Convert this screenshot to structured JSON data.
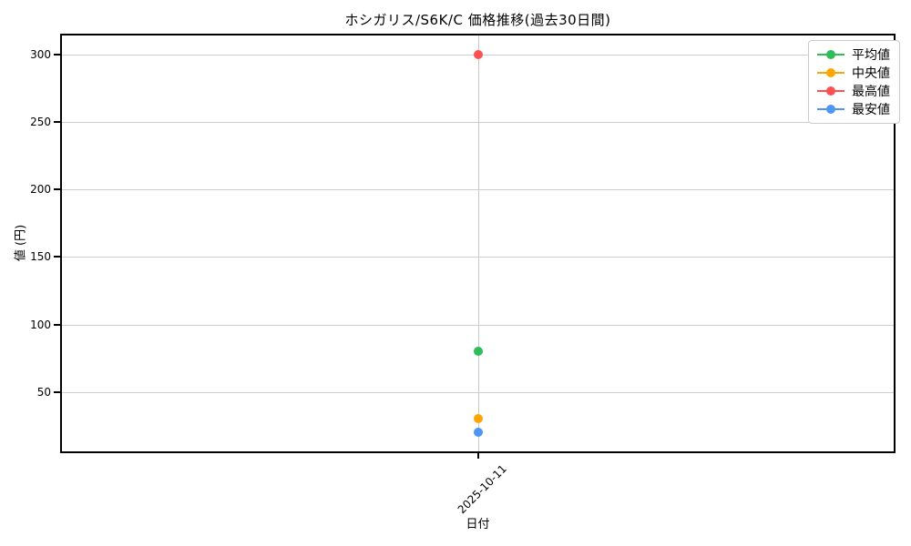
{
  "chart_data": {
    "type": "line",
    "title": "ホシガリス/S6K/C 価格推移(過去30日間)",
    "xlabel": "日付",
    "ylabel": "値 (円)",
    "x": [
      "2025-10-11"
    ],
    "series": [
      {
        "name": "平均値",
        "color": "#2ebd59",
        "values": [
          80
        ]
      },
      {
        "name": "中央値",
        "color": "#ffa502",
        "values": [
          30
        ]
      },
      {
        "name": "最高値",
        "color": "#fa5252",
        "values": [
          300
        ]
      },
      {
        "name": "最安値",
        "color": "#4e96f5",
        "values": [
          20
        ]
      }
    ],
    "ylim": [
      6,
      314
    ],
    "yticks": [
      50,
      100,
      150,
      200,
      250,
      300
    ],
    "grid": true,
    "legend_position": "upper right",
    "colors": {
      "grid": "#cdcdcd",
      "spine": "#000000",
      "background": "#ffffff"
    }
  }
}
